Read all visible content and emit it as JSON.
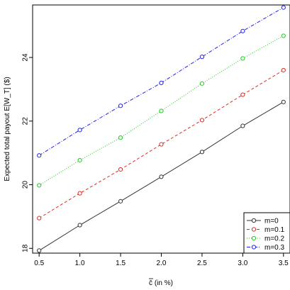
{
  "chart_data": {
    "type": "line",
    "title": "",
    "xlabel": "c̄ (in %)",
    "ylabel": "Expected total payout E[W_T] ($)",
    "x": [
      0.5,
      1.0,
      1.5,
      2.0,
      2.5,
      3.0,
      3.5
    ],
    "x_ticks": [
      "0.5",
      "1.0",
      "1.5",
      "2.0",
      "2.5",
      "3.0",
      "3.5"
    ],
    "y_ticks": [
      "18",
      "20",
      "22",
      "24"
    ],
    "y_tick_values": [
      18,
      20,
      22,
      24
    ],
    "xlim": [
      0.42,
      3.58
    ],
    "ylim": [
      17.85,
      25.65
    ],
    "grid": false,
    "legend_position": "bottom-right",
    "series": [
      {
        "name": "m=0",
        "color": "#333333",
        "dash": "solid",
        "values": [
          17.93,
          18.73,
          19.48,
          20.25,
          21.03,
          21.85,
          22.6
        ]
      },
      {
        "name": "m=0.1",
        "color": "#e8281e",
        "dash": "dashed",
        "values": [
          18.95,
          19.73,
          20.48,
          21.27,
          22.03,
          22.83,
          23.6
        ]
      },
      {
        "name": "m=0.2",
        "color": "#22cc22",
        "dash": "dotted",
        "values": [
          19.98,
          20.77,
          21.48,
          22.32,
          23.18,
          23.97,
          24.68
        ]
      },
      {
        "name": "m=0.3",
        "color": "#2222ee",
        "dash": "dashdot",
        "values": [
          20.92,
          21.72,
          22.48,
          23.2,
          24.02,
          24.83,
          25.57
        ]
      }
    ]
  }
}
